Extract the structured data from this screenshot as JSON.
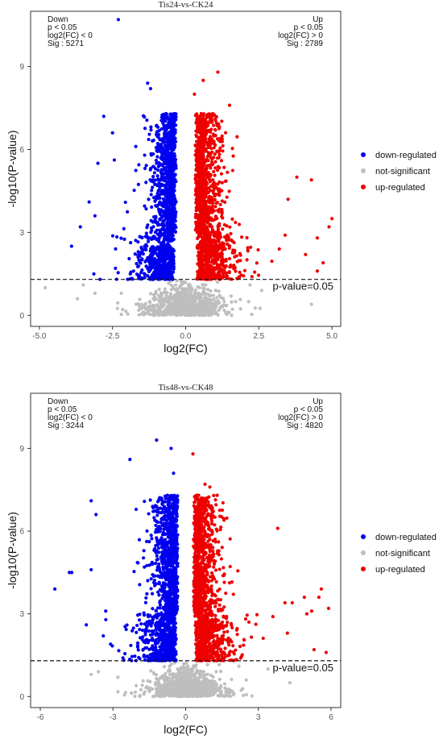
{
  "chart_data": [
    {
      "type": "scatter",
      "title": "Tis24-vs-CK24",
      "xlabel": "log2(FC)",
      "ylabel": "-log10(P-value)",
      "xlim": [
        -5.3,
        5.3
      ],
      "ylim": [
        -0.4,
        11.0
      ],
      "xticks": [
        -5.0,
        -2.5,
        0.0,
        2.5,
        5.0
      ],
      "xtick_labels": [
        "-5.0",
        "-2.5",
        "0.0",
        "2.5",
        "5.0"
      ],
      "yticks": [
        0,
        3,
        6,
        9
      ],
      "ytick_labels": [
        "0",
        "3",
        "6",
        "9"
      ],
      "threshold": {
        "y": 1.3,
        "label": "p-value=0.05"
      },
      "corner_down": [
        "Down",
        "p < 0.05",
        "log2(FC) < 0",
        "Sig : 5271"
      ],
      "corner_up": [
        "Up",
        "p < 0.05",
        "log2(FC) > 0",
        "Sig : 2789"
      ],
      "series": [
        {
          "name": "down-regulated",
          "color": "#0000ee",
          "count": 5271
        },
        {
          "name": "not-significant",
          "color": "#bebebe"
        },
        {
          "name": "up-regulated",
          "color": "#ee0000",
          "count": 2789
        }
      ],
      "highlights": {
        "down-regulated": [
          [
            -2.3,
            10.7
          ],
          [
            -1.3,
            8.4
          ],
          [
            -1.2,
            8.2
          ],
          [
            -3.9,
            2.5
          ],
          [
            -3.6,
            3.2
          ],
          [
            -2.8,
            7.2
          ],
          [
            -2.5,
            6.6
          ],
          [
            -3.0,
            5.5
          ],
          [
            -3.3,
            4.1
          ],
          [
            -3.1,
            3.6
          ]
        ],
        "up-regulated": [
          [
            1.1,
            8.8
          ],
          [
            0.6,
            8.5
          ],
          [
            0.3,
            8.0
          ],
          [
            1.5,
            7.6
          ],
          [
            4.3,
            4.9
          ],
          [
            5.0,
            3.5
          ],
          [
            4.9,
            3.2
          ],
          [
            4.5,
            2.8
          ],
          [
            4.7,
            1.9
          ],
          [
            3.5,
            4.2
          ],
          [
            3.8,
            5.0
          ],
          [
            4.1,
            2.2
          ],
          [
            4.5,
            1.6
          ],
          [
            3.4,
            2.9
          ],
          [
            3.2,
            2.4
          ]
        ],
        "not-significant": [
          [
            -4.8,
            1.0
          ],
          [
            -3.7,
            0.6
          ],
          [
            -3.1,
            0.8
          ],
          [
            -2.2,
            0.8
          ],
          [
            4.3,
            0.4
          ],
          [
            2.2,
            1.1
          ],
          [
            2.6,
            0.9
          ],
          [
            -3.5,
            1.1
          ]
        ]
      }
    },
    {
      "type": "scatter",
      "title": "Tis48-vs-CK48",
      "xlabel": "log2(FC)",
      "ylabel": "-log10(P-value)",
      "xlim": [
        -6.4,
        6.4
      ],
      "ylim": [
        -0.4,
        11.0
      ],
      "xticks": [
        -6,
        -3,
        0,
        3,
        6
      ],
      "xtick_labels": [
        "-6",
        "-3",
        "0",
        "3",
        "6"
      ],
      "yticks": [
        0,
        3,
        6,
        9
      ],
      "ytick_labels": [
        "0",
        "3",
        "6",
        "9"
      ],
      "threshold": {
        "y": 1.3,
        "label": "p-value=0.05"
      },
      "corner_down": [
        "Down",
        "p < 0.05",
        "log2(FC) < 0",
        "Sig : 3244"
      ],
      "corner_up": [
        "Up",
        "p < 0.05",
        "log2(FC) > 0",
        "Sig : 4820"
      ],
      "series": [
        {
          "name": "down-regulated",
          "color": "#0000ee",
          "count": 3244
        },
        {
          "name": "not-significant",
          "color": "#bebebe"
        },
        {
          "name": "up-regulated",
          "color": "#ee0000",
          "count": 4820
        }
      ],
      "highlights": {
        "down-regulated": [
          [
            -1.2,
            9.3
          ],
          [
            -2.3,
            8.6
          ],
          [
            -0.6,
            9.0
          ],
          [
            -0.5,
            8.1
          ],
          [
            -3.9,
            7.1
          ],
          [
            -3.7,
            6.6
          ],
          [
            -5.4,
            3.9
          ],
          [
            -4.8,
            4.5
          ],
          [
            -4.7,
            4.5
          ],
          [
            -3.3,
            3.1
          ],
          [
            -3.4,
            2.2
          ],
          [
            -3.1,
            1.9
          ],
          [
            -4.1,
            2.6
          ],
          [
            -3.9,
            4.6
          ]
        ],
        "up-regulated": [
          [
            0.8,
            7.7
          ],
          [
            1.0,
            7.6
          ],
          [
            0.3,
            8.8
          ],
          [
            1.3,
            7.3
          ],
          [
            3.8,
            6.1
          ],
          [
            5.2,
            3.1
          ],
          [
            4.9,
            3.6
          ],
          [
            5.5,
            3.6
          ],
          [
            5.0,
            3.0
          ],
          [
            5.8,
            1.6
          ],
          [
            5.3,
            1.7
          ],
          [
            4.4,
            3.4
          ],
          [
            4.1,
            3.4
          ],
          [
            3.6,
            2.9
          ],
          [
            5.9,
            3.2
          ],
          [
            5.6,
            3.9
          ],
          [
            4.2,
            2.3
          ]
        ],
        "not-significant": [
          [
            -3.9,
            0.8
          ],
          [
            -3.6,
            0.9
          ],
          [
            -2.8,
            0.7
          ],
          [
            4.3,
            0.5
          ],
          [
            3.4,
            1.0
          ],
          [
            2.2,
            1.1
          ],
          [
            2.5,
            0.6
          ]
        ]
      }
    }
  ]
}
